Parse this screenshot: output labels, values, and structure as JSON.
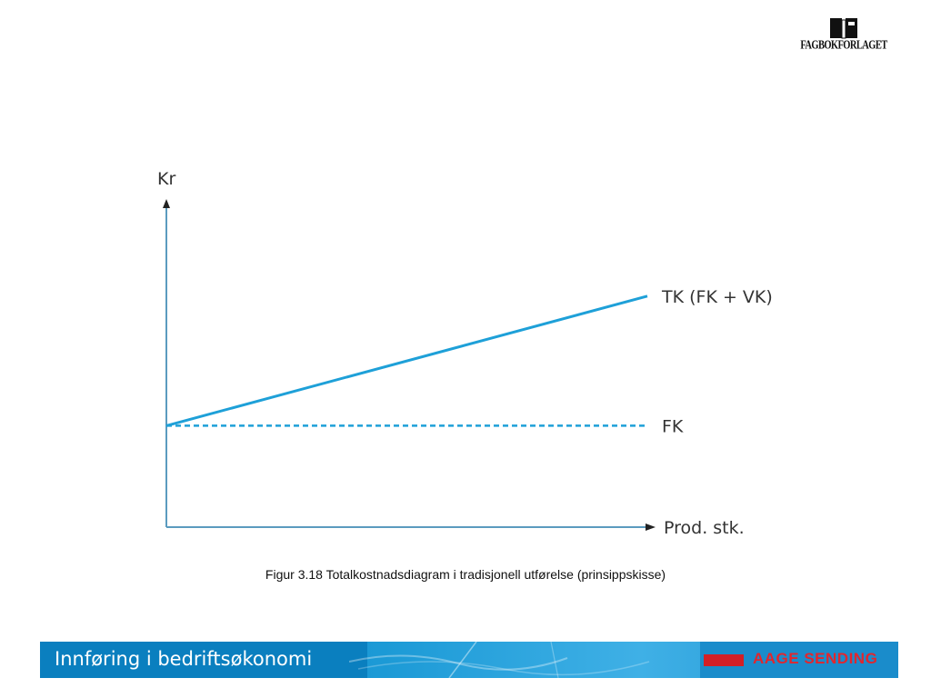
{
  "logo": {
    "text": "FAGBOKFORLAGET",
    "icon": "book-logo-icon"
  },
  "chart_data": {
    "type": "line",
    "title": "",
    "ylabel": "Kr",
    "xlabel": "Prod. stk.",
    "xlim": [
      0,
      1
    ],
    "ylim": [
      0,
      1
    ],
    "grid": false,
    "series": [
      {
        "name": "TK (FK + VK)",
        "x": [
          0,
          1
        ],
        "y": [
          0.36,
          0.82
        ],
        "style": "solid",
        "color": "#1ea0d8"
      },
      {
        "name": "FK",
        "x": [
          0,
          1
        ],
        "y": [
          0.36,
          0.36
        ],
        "style": "dashed",
        "color": "#1ea0d8"
      }
    ],
    "axis_color": "#5b9bbf"
  },
  "caption": "Figur 3.18 Totalkostnadsdiagram i tradisjonell utførelse (prinsippskisse)",
  "footer": {
    "title": "Innføring i bedriftsøkonomi",
    "author": "AAGE SENDING"
  },
  "colors": {
    "footer_blue": "#1c9ad6",
    "author_red": "#d21f26",
    "line_blue": "#1ea0d8"
  }
}
